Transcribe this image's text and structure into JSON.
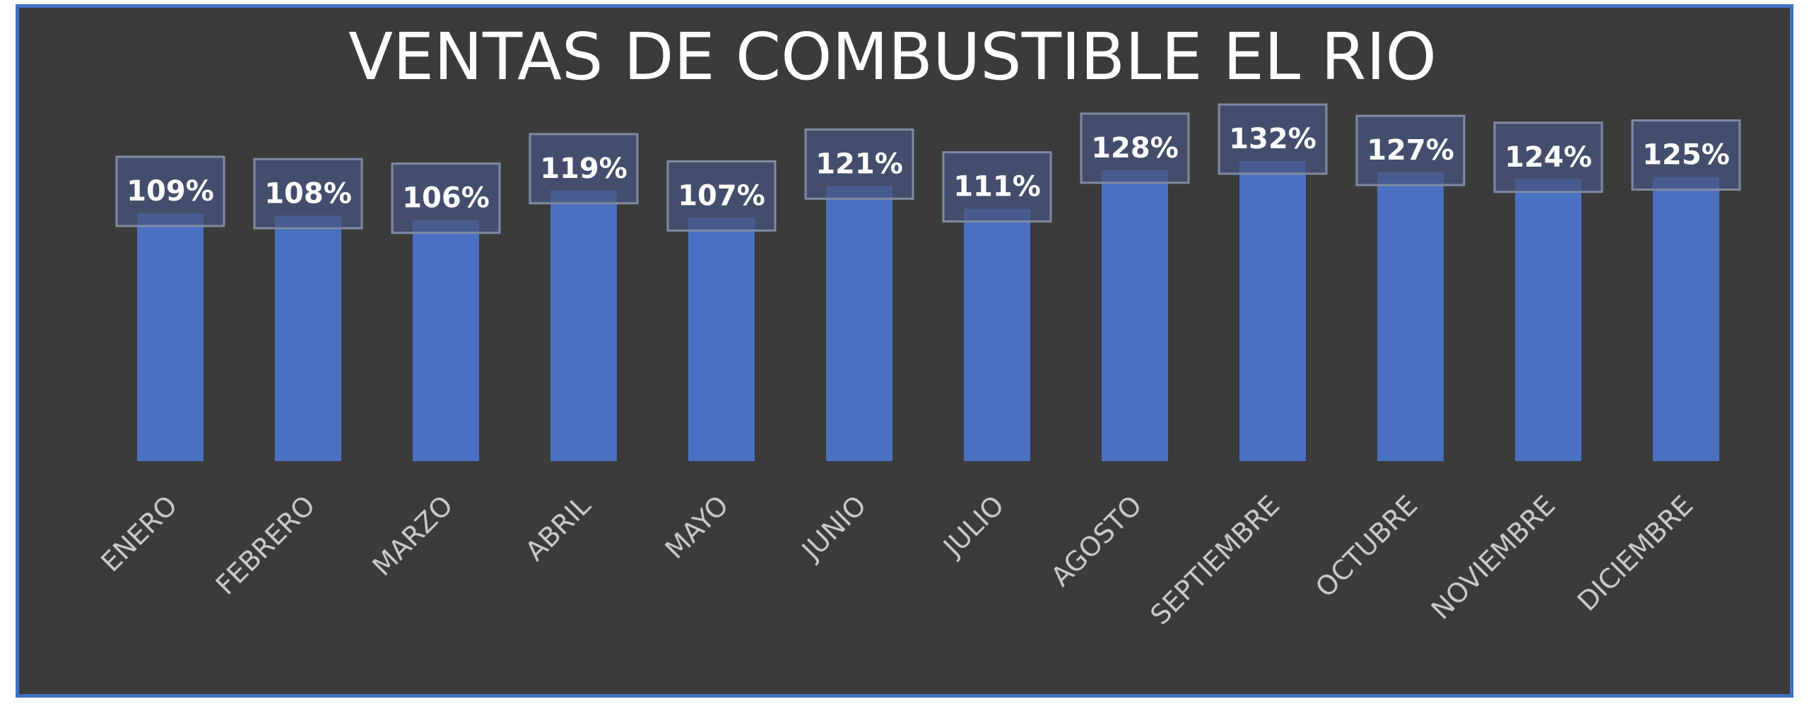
{
  "chart_data": {
    "type": "bar",
    "title": "VENTAS DE COMBUSTIBLE EL RIO",
    "categories": [
      "ENERO",
      "FEBRERO",
      "MARZO",
      "ABRIL",
      "MAYO",
      "JUNIO",
      "JULIO",
      "AGOSTO",
      "SEPTIEMBRE",
      "OCTUBRE",
      "NOVIEMBRE",
      "DICIEMBRE"
    ],
    "values": [
      109,
      108,
      106,
      119,
      107,
      121,
      111,
      128,
      132,
      127,
      124,
      125
    ],
    "data_labels": [
      "109%",
      "108%",
      "106%",
      "119%",
      "107%",
      "121%",
      "111%",
      "128%",
      "132%",
      "127%",
      "124%",
      "125%"
    ],
    "value_unit": "%",
    "ylim": [
      0,
      132
    ],
    "grid": false,
    "legend": "none",
    "colors": {
      "bar": "#4a70c1",
      "background": "#3b3b3b",
      "border": "#3f72c6",
      "label_box": "#48567e"
    }
  }
}
